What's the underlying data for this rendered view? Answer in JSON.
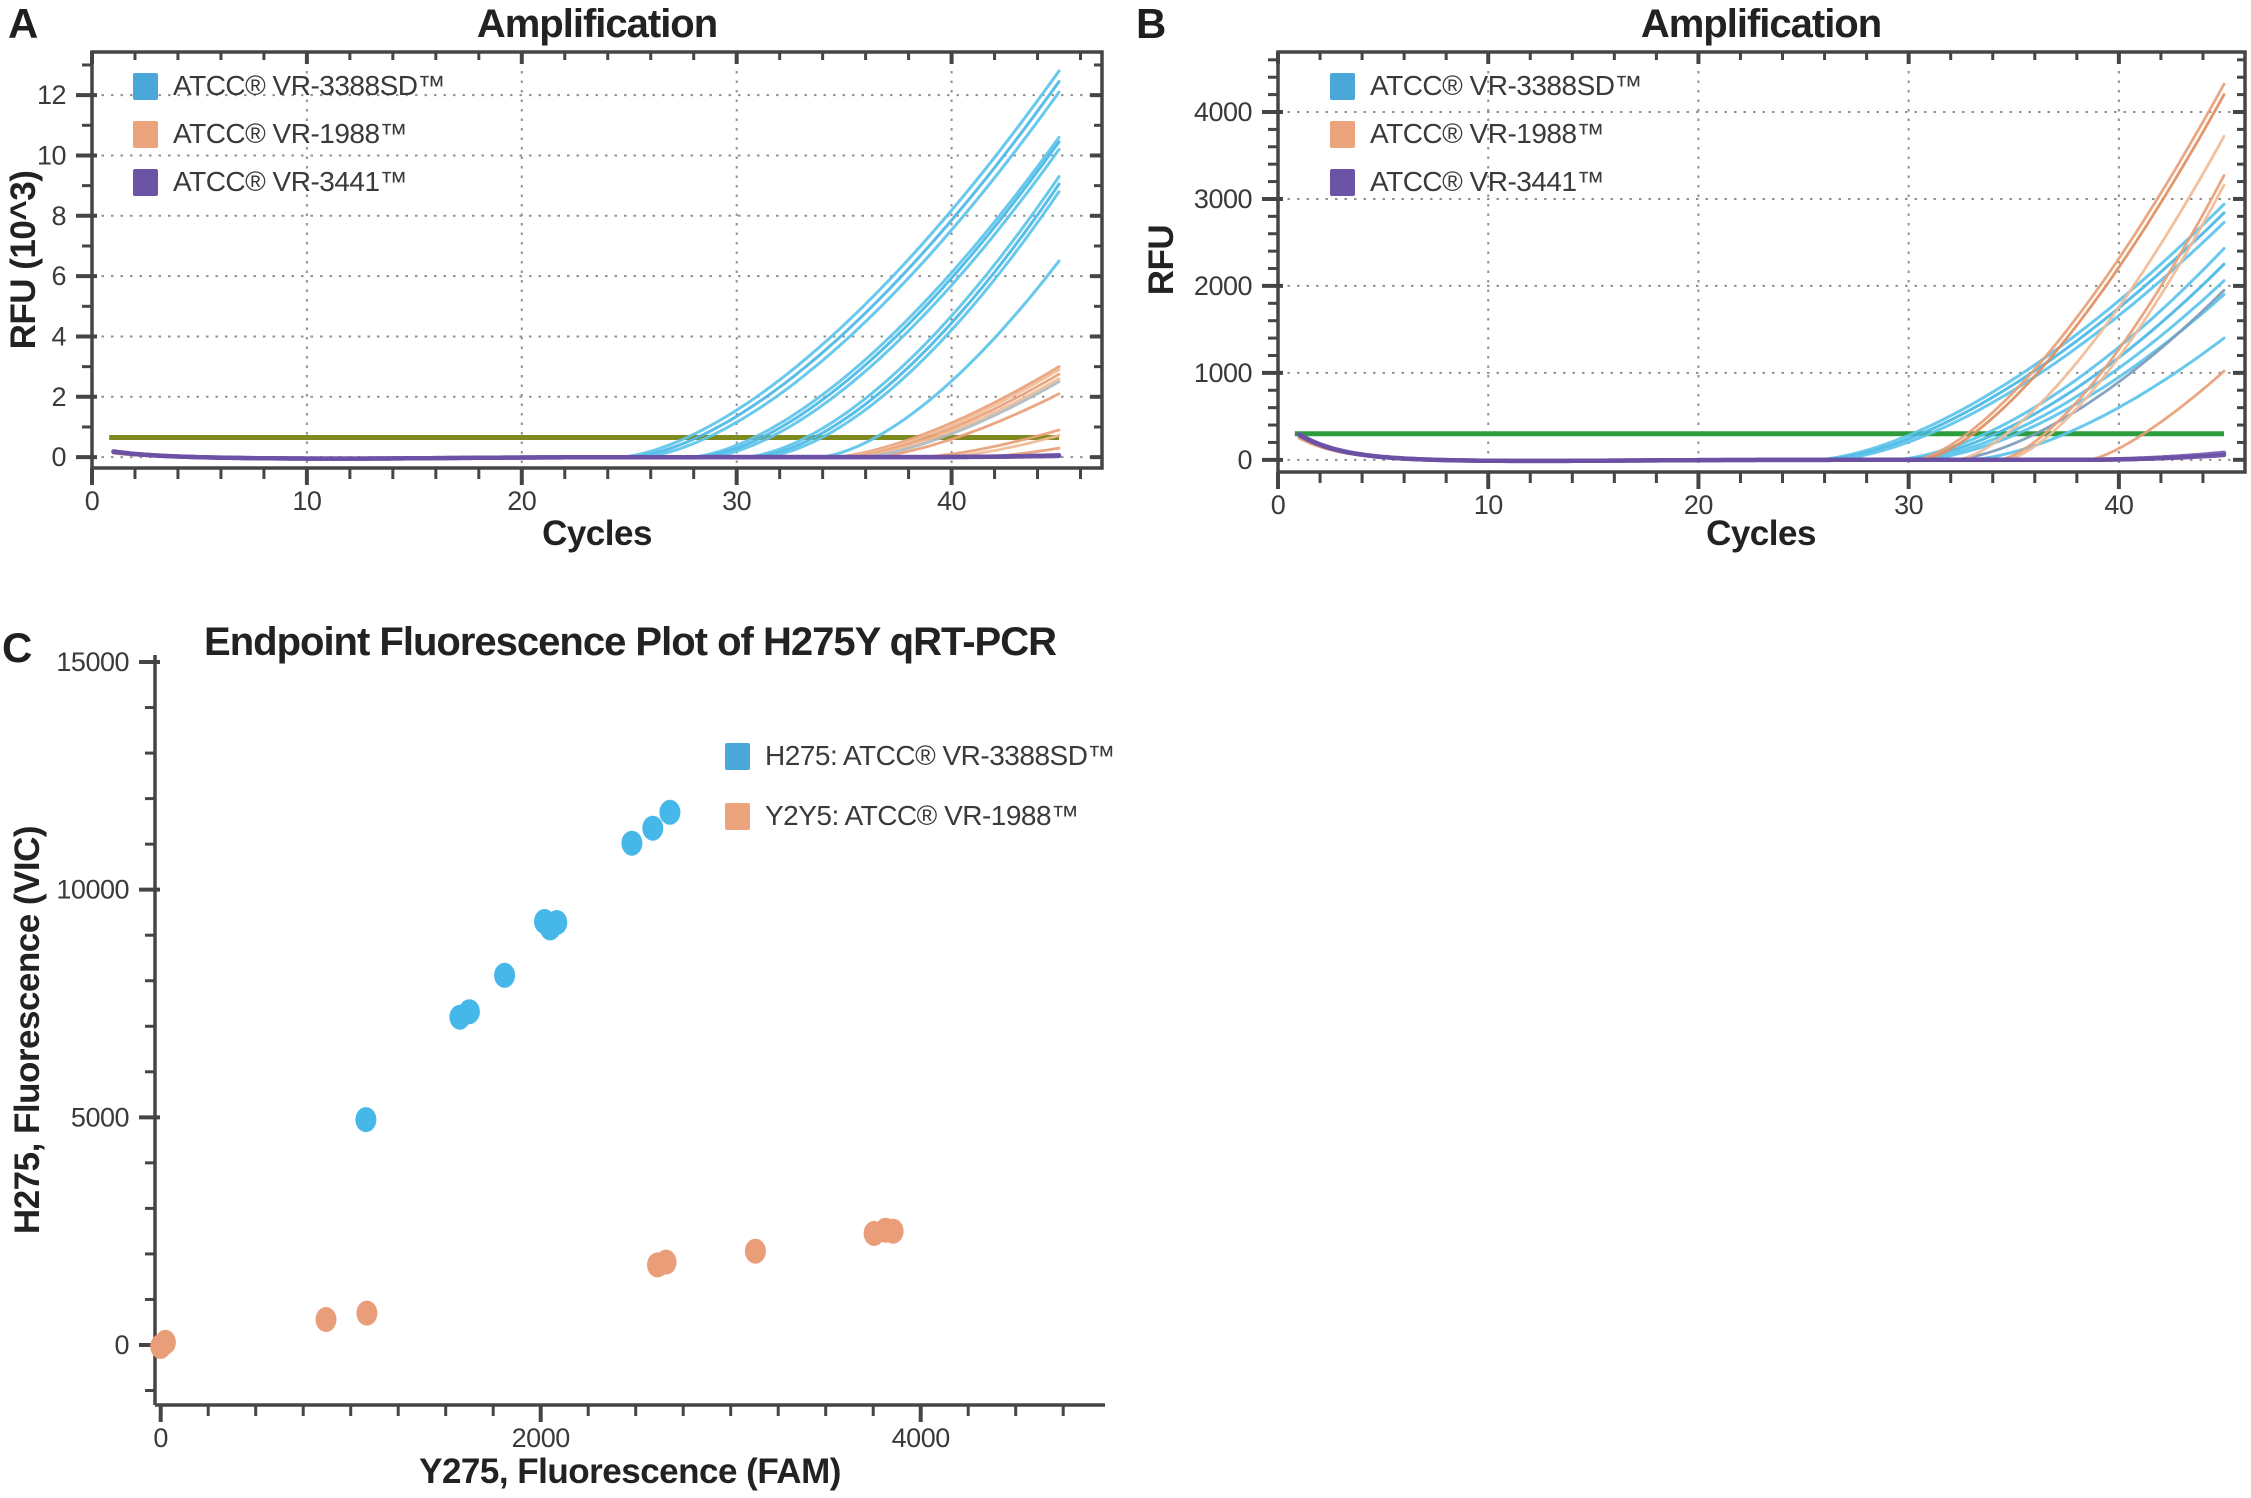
{
  "chart_data": [
    {
      "panel": "A",
      "type": "line",
      "title": "Amplification",
      "xlabel": "Cycles",
      "ylabel": "RFU (10^3)",
      "units": "RFU x 10^3",
      "xlim": [
        0,
        47
      ],
      "ylim": [
        -0.36,
        13.43
      ],
      "x_major_ticks": [
        0,
        10,
        20,
        30,
        40
      ],
      "x_minor_step": 2,
      "y_major_ticks": [
        0,
        2,
        4,
        6,
        8,
        10,
        12
      ],
      "y_minor_ticks": [
        1,
        3,
        5,
        7,
        9,
        11,
        13
      ],
      "grid": "dotted",
      "legend_position": "upper-left",
      "legend": [
        {
          "label": "ATCC® VR-3388SD™",
          "color": "#4ba7d9"
        },
        {
          "label": "ATCC® VR-1988™",
          "color": "#eba47c"
        },
        {
          "label": "ATCC® VR-3441™",
          "color": "#6b54a5"
        }
      ],
      "threshold": {
        "value": 0.65,
        "color": "#7e8a1e"
      },
      "cycles_range": [
        1,
        45
      ],
      "baseline_dip": 0.05,
      "series": [
        {
          "group": "ATCC® VR-3388SD™",
          "color": "#5cc4ec",
          "baseline_start": 0.17,
          "takeoff_cycle": 24.5,
          "end_value": 12.8,
          "power": 1.6
        },
        {
          "group": "ATCC® VR-3388SD™",
          "color": "#4ab9e6",
          "baseline_start": 0.16,
          "takeoff_cycle": 25.0,
          "end_value": 12.45,
          "power": 1.6
        },
        {
          "group": "ATCC® VR-3388SD™",
          "color": "#5cc4ec",
          "baseline_start": 0.15,
          "takeoff_cycle": 25.5,
          "end_value": 12.1,
          "power": 1.6
        },
        {
          "group": "ATCC® VR-3388SD™",
          "color": "#5cc4ec",
          "baseline_start": 0.17,
          "takeoff_cycle": 27.8,
          "end_value": 10.6,
          "power": 1.6
        },
        {
          "group": "ATCC® VR-3388SD™",
          "color": "#4ab9e6",
          "baseline_start": 0.15,
          "takeoff_cycle": 28.2,
          "end_value": 10.45,
          "power": 1.6
        },
        {
          "group": "ATCC® VR-3388SD™",
          "color": "#5cc4ec",
          "baseline_start": 0.16,
          "takeoff_cycle": 28.6,
          "end_value": 10.2,
          "power": 1.6
        },
        {
          "group": "ATCC® VR-3388SD™",
          "color": "#5cc4ec",
          "baseline_start": 0.15,
          "takeoff_cycle": 30.3,
          "end_value": 9.3,
          "power": 1.65
        },
        {
          "group": "ATCC® VR-3388SD™",
          "color": "#4ab9e6",
          "baseline_start": 0.16,
          "takeoff_cycle": 30.7,
          "end_value": 9.05,
          "power": 1.65
        },
        {
          "group": "ATCC® VR-3388SD™",
          "color": "#5cc4ec",
          "baseline_start": 0.15,
          "takeoff_cycle": 31.1,
          "end_value": 8.8,
          "power": 1.65
        },
        {
          "group": "ATCC® VR-3388SD™",
          "color": "#5cc4ec",
          "baseline_start": 0.16,
          "takeoff_cycle": 33.8,
          "end_value": 6.5,
          "power": 1.6
        },
        {
          "group": "ATCC® VR-1988™",
          "color": "#e8a077",
          "baseline_start": 0.15,
          "takeoff_cycle": 34.5,
          "end_value": 3.0,
          "power": 1.5
        },
        {
          "group": "ATCC® VR-1988™",
          "color": "#f0bb97",
          "baseline_start": 0.14,
          "takeoff_cycle": 34.8,
          "end_value": 2.9,
          "power": 1.5
        },
        {
          "group": "ATCC® VR-1988™",
          "color": "#e8a077",
          "baseline_start": 0.15,
          "takeoff_cycle": 35.1,
          "end_value": 2.75,
          "power": 1.5
        },
        {
          "group": "ATCC® VR-1988™",
          "color": "#f0bb97",
          "baseline_start": 0.14,
          "takeoff_cycle": 35.4,
          "end_value": 2.6,
          "power": 1.5
        },
        {
          "group": "ATCC® VR-1988™",
          "color": "#e8a077",
          "baseline_start": 0.15,
          "takeoff_cycle": 36.2,
          "end_value": 2.1,
          "power": 1.5
        },
        {
          "group": "ATCC® VR-1988™",
          "color": "#e8a077",
          "baseline_start": 0.14,
          "takeoff_cycle": 38.5,
          "end_value": 0.9,
          "power": 1.5
        },
        {
          "group": "ATCC® VR-1988™",
          "color": "#f0bb97",
          "baseline_start": 0.14,
          "takeoff_cycle": 39.5,
          "end_value": 0.72,
          "power": 1.5
        },
        {
          "group": "ATCC® VR-1988™",
          "color": "#e8a077",
          "baseline_start": 0.15,
          "takeoff_cycle": 41.0,
          "end_value": 0.3,
          "power": 1.6
        },
        {
          "group": "unassigned-gray",
          "color": "#aeb9c0",
          "baseline_start": 0.15,
          "takeoff_cycle": 35.8,
          "end_value": 2.5,
          "power": 1.5
        },
        {
          "group": "ATCC® VR-3441™",
          "color": "#7a5bb6",
          "baseline_start": 0.2,
          "takeoff_cycle": 38.0,
          "end_value": 0.06,
          "power": 2.0
        },
        {
          "group": "ATCC® VR-3441™",
          "color": "#6a4fa3",
          "baseline_start": 0.19,
          "takeoff_cycle": 38.0,
          "end_value": 0.04,
          "power": 2.0
        }
      ]
    },
    {
      "panel": "B",
      "type": "line",
      "title": "Amplification",
      "xlabel": "Cycles",
      "ylabel": "RFU",
      "units": "RFU",
      "xlim": [
        0,
        46
      ],
      "ylim": [
        -140,
        4690
      ],
      "x_major_ticks": [
        0,
        10,
        20,
        30,
        40
      ],
      "x_minor_step": 2,
      "y_major_ticks": [
        0,
        1000,
        2000,
        3000,
        4000
      ],
      "y_minor_step": 200,
      "grid": "dotted",
      "legend_position": "upper-left",
      "legend": [
        {
          "label": "ATCC® VR-3388SD™",
          "color": "#4ba7d9"
        },
        {
          "label": "ATCC® VR-1988™",
          "color": "#eba47c"
        },
        {
          "label": "ATCC® VR-3441™",
          "color": "#6b54a5"
        }
      ],
      "threshold": {
        "value": 300,
        "color": "#2d9c3b"
      },
      "cycles_range": [
        1,
        45
      ],
      "baseline_dip": 14,
      "series": [
        {
          "group": "ATCC® VR-3388SD™",
          "color": "#5cc4ec",
          "baseline_start": 290,
          "takeoff_cycle": 25.5,
          "end_value": 2940,
          "power": 1.6
        },
        {
          "group": "ATCC® VR-3388SD™",
          "color": "#4ab9e6",
          "baseline_start": 280,
          "takeoff_cycle": 25.9,
          "end_value": 2840,
          "power": 1.6
        },
        {
          "group": "ATCC® VR-3388SD™",
          "color": "#5cc4ec",
          "baseline_start": 270,
          "takeoff_cycle": 26.3,
          "end_value": 2730,
          "power": 1.6
        },
        {
          "group": "ATCC® VR-3388SD™",
          "color": "#5cc4ec",
          "baseline_start": 285,
          "takeoff_cycle": 29.2,
          "end_value": 2430,
          "power": 1.65
        },
        {
          "group": "ATCC® VR-3388SD™",
          "color": "#4ab9e6",
          "baseline_start": 275,
          "takeoff_cycle": 29.6,
          "end_value": 2250,
          "power": 1.65
        },
        {
          "group": "ATCC® VR-3388SD™",
          "color": "#5cc4ec",
          "baseline_start": 280,
          "takeoff_cycle": 30.0,
          "end_value": 2060,
          "power": 1.65
        },
        {
          "group": "ATCC® VR-3388SD™",
          "color": "#5cc4ec",
          "baseline_start": 270,
          "takeoff_cycle": 30.4,
          "end_value": 1900,
          "power": 1.65
        },
        {
          "group": "ATCC® VR-3388SD™",
          "color": "#5cc4ec",
          "baseline_start": 275,
          "takeoff_cycle": 32.8,
          "end_value": 1400,
          "power": 1.6
        },
        {
          "group": "unassigned-steel",
          "color": "#7d9bb8",
          "baseline_start": 270,
          "takeoff_cycle": 32.0,
          "end_value": 1950,
          "power": 1.6
        },
        {
          "group": "ATCC® VR-1988™",
          "color": "#e8a077",
          "baseline_start": 260,
          "takeoff_cycle": 30.3,
          "end_value": 4320,
          "power": 1.5
        },
        {
          "group": "ATCC® VR-1988™",
          "color": "#e08e60",
          "baseline_start": 255,
          "takeoff_cycle": 30.6,
          "end_value": 4200,
          "power": 1.5
        },
        {
          "group": "ATCC® VR-1988™",
          "color": "#f0bb97",
          "baseline_start": 260,
          "takeoff_cycle": 32.3,
          "end_value": 3720,
          "power": 1.5
        },
        {
          "group": "ATCC® VR-1988™",
          "color": "#e8a077",
          "baseline_start": 255,
          "takeoff_cycle": 34.3,
          "end_value": 3270,
          "power": 1.5
        },
        {
          "group": "ATCC® VR-1988™",
          "color": "#f0bb97",
          "baseline_start": 260,
          "takeoff_cycle": 34.6,
          "end_value": 3160,
          "power": 1.5
        },
        {
          "group": "ATCC® VR-1988™",
          "color": "#e8a077",
          "baseline_start": 255,
          "takeoff_cycle": 38.6,
          "end_value": 1020,
          "power": 1.35
        },
        {
          "group": "ATCC® VR-3441™",
          "color": "#7a5bb6",
          "baseline_start": 300,
          "takeoff_cycle": 38.0,
          "end_value": 80,
          "power": 2.0
        },
        {
          "group": "ATCC® VR-3441™",
          "color": "#6a4fa3",
          "baseline_start": 290,
          "takeoff_cycle": 38.0,
          "end_value": 55,
          "power": 2.0
        }
      ]
    },
    {
      "panel": "C",
      "type": "scatter",
      "title": "Endpoint Fluorescence Plot of H275Y qRT-PCR",
      "xlabel": "Y275, Fluorescence (FAM)",
      "ylabel": "H275, Fluorescence (VIC)",
      "xlim": [
        -30,
        4970
      ],
      "ylim": [
        -1318,
        15154
      ],
      "x_major_ticks": [
        0,
        2000,
        4000
      ],
      "x_minor_step": 250,
      "y_major_ticks": [
        0,
        5000,
        10000,
        15000
      ],
      "y_minor_step": 1000,
      "grid": "off",
      "legend_position": "upper-right",
      "legend": [
        {
          "label": "H275: ATCC® VR-3388SD™",
          "color": "#4ba7d9"
        },
        {
          "label": "Y2Y5: ATCC® VR-1988™",
          "color": "#eba47c"
        }
      ],
      "series": [
        {
          "name": "H275: ATCC® VR-3388SD™",
          "color": "#46b7e9",
          "points": [
            [
              1080,
              4950
            ],
            [
              1575,
              7200
            ],
            [
              1625,
              7320
            ],
            [
              1810,
              8120
            ],
            [
              2020,
              9300
            ],
            [
              2050,
              9160
            ],
            [
              2085,
              9280
            ],
            [
              2480,
              11020
            ],
            [
              2590,
              11350
            ],
            [
              2680,
              11700
            ]
          ]
        },
        {
          "name": "Y2Y5: ATCC® VR-1988™",
          "color": "#e99e79",
          "points": [
            [
              0,
              -30
            ],
            [
              25,
              60
            ],
            [
              870,
              560
            ],
            [
              1085,
              700
            ],
            [
              2615,
              1760
            ],
            [
              2660,
              1820
            ],
            [
              3130,
              2060
            ],
            [
              3755,
              2450
            ],
            [
              3815,
              2520
            ],
            [
              3855,
              2500
            ]
          ]
        }
      ]
    }
  ]
}
